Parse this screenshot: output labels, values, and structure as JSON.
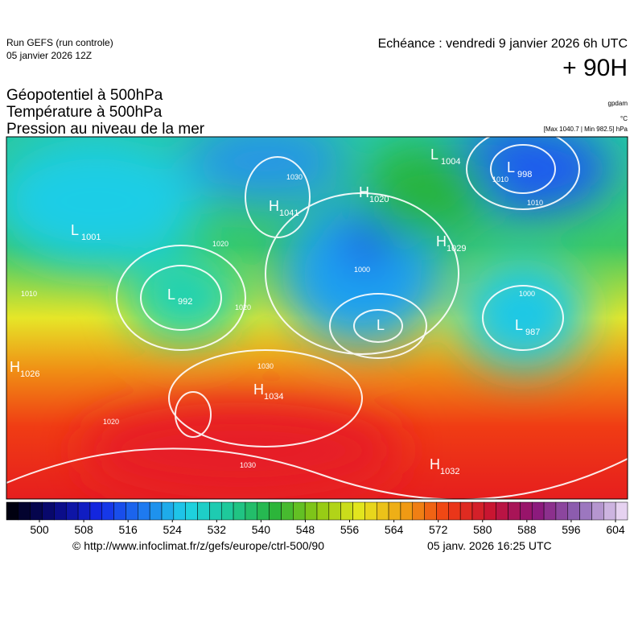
{
  "header": {
    "run": "Run GEFS (run controle)",
    "run_date": "05 janvier 2026 12Z",
    "valid": "Echéance : vendredi 9 janvier 2026 6h UTC",
    "lead": "+ 90H"
  },
  "fields": [
    "Géopotentiel à 500hPa",
    "Température à 500hPa",
    "Pression au niveau de la mer"
  ],
  "units": [
    "gpdam",
    "°C",
    "[Max 1040.7 | Min 982.5] hPa"
  ],
  "centers": [
    {
      "symbol": "L",
      "value": 1001
    },
    {
      "symbol": "H",
      "value": 1041
    },
    {
      "symbol": "H",
      "value": 1020
    },
    {
      "symbol": "L",
      "value": 1004
    },
    {
      "symbol": "L",
      "value": 998
    },
    {
      "symbol": "H",
      "value": 1029
    },
    {
      "symbol": "L",
      "value": 992
    },
    {
      "symbol": "L",
      "value": 987
    },
    {
      "symbol": "L",
      "value": null
    },
    {
      "symbol": "H",
      "value": 1026
    },
    {
      "symbol": "H",
      "value": 1034
    },
    {
      "symbol": "H",
      "value": 1032
    }
  ],
  "isobar_labels": [
    1030,
    1020,
    1000,
    1020,
    1030,
    1030,
    1020,
    1010,
    1010,
    1000,
    1010
  ],
  "colorbar": {
    "ticks": [
      500,
      508,
      516,
      524,
      532,
      540,
      548,
      556,
      564,
      572,
      580,
      588,
      596,
      604
    ],
    "colors": [
      "#000010",
      "#0a0a80",
      "#1428e6",
      "#1e78f0",
      "#1ed2e6",
      "#1ec896",
      "#28b43c",
      "#8cc814",
      "#e6e61e",
      "#f0a014",
      "#f03c14",
      "#c81432",
      "#8c1478",
      "#8c64b4",
      "#e6d2f0"
    ]
  },
  "footer": {
    "source": "© http://www.infoclimat.fr/z/gefs/europe/ctrl-500/90",
    "generated": "05 janv. 2026 16:25 UTC"
  }
}
